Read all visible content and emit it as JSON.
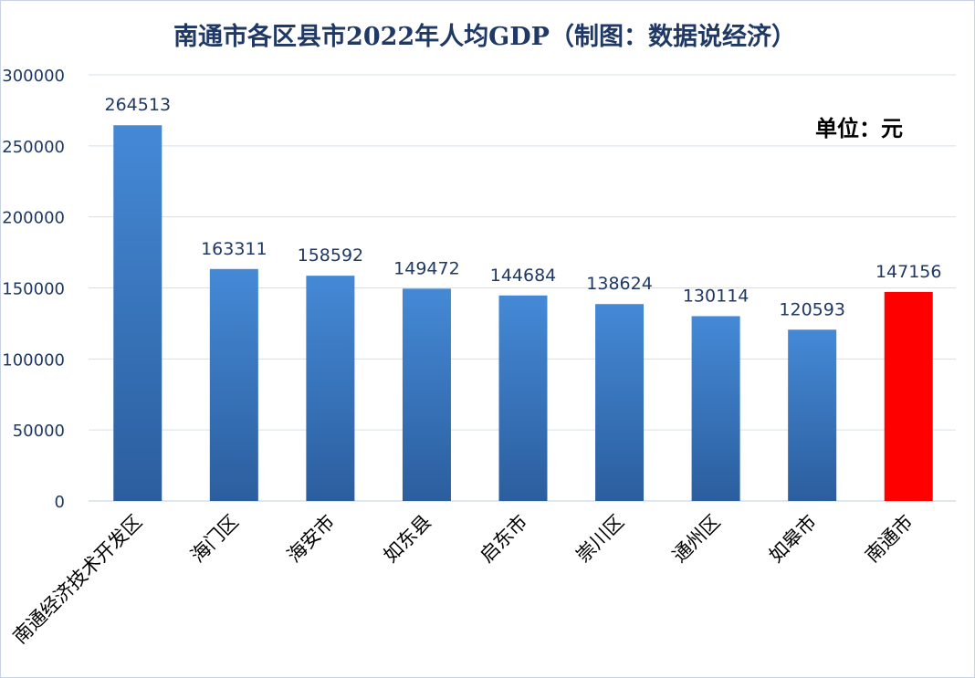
{
  "chart_data": {
    "type": "bar",
    "title": "南通市各区县市2022年人均GDP（制图：数据说经济）",
    "unit_label": "单位：元",
    "categories": [
      "南通经济技术开发区",
      "海门区",
      "海安市",
      "如东县",
      "启东市",
      "崇川区",
      "通州区",
      "如皋市",
      "南通市"
    ],
    "values": [
      264513,
      163311,
      158592,
      149472,
      144684,
      138624,
      130114,
      120593,
      147156
    ],
    "data_labels": [
      "264513",
      "163311",
      "158592",
      "149472",
      "144684",
      "138624",
      "130114",
      "120593",
      "147156"
    ],
    "y_ticks": [
      "0",
      "50000",
      "100000",
      "150000",
      "200000",
      "250000",
      "300000"
    ],
    "ylim": [
      0,
      300000
    ],
    "grid": true,
    "legend": "none",
    "bar_color": "#3b78c8",
    "highlight_color": "#ff0000",
    "highlight_category": "南通市",
    "text_color": "#1f3864"
  }
}
